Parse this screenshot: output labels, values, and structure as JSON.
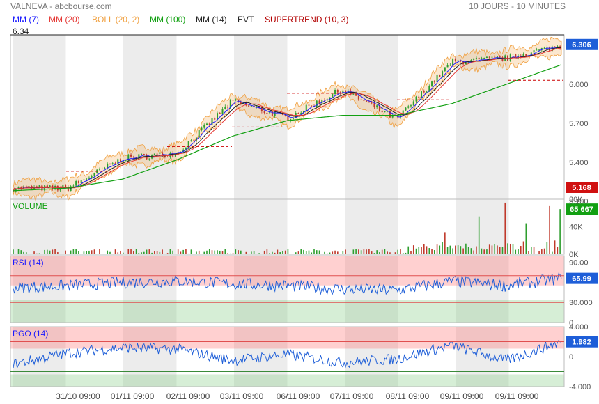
{
  "header": {
    "source": "VALNEVA - abcbourse.com",
    "period": "10 JOURS - 10 MINUTES"
  },
  "indicators": [
    {
      "label": "MM (7)",
      "color": "#1a1aff"
    },
    {
      "label": "MM (20)",
      "color": "#e53935"
    },
    {
      "label": "BOLL (20, 2)",
      "color": "#f0a040"
    },
    {
      "label": "MM (100)",
      "color": "#12a012"
    },
    {
      "label": "MM (14)",
      "color": "#222222"
    },
    {
      "label": "EVT",
      "color": "#222222"
    },
    {
      "label": "SUPERTREND (10, 3)",
      "color": "#b30000"
    }
  ],
  "price_panel": {
    "top_value": "6.34",
    "last_price": "6.306",
    "min_price": "5.168",
    "yticks": [
      "6.000",
      "5.700",
      "5.400",
      "5.100"
    ]
  },
  "volume_panel": {
    "title": "VOLUME",
    "last_volume": "65 667",
    "yticks": [
      "80K",
      "40K",
      "0K"
    ]
  },
  "rsi_panel": {
    "title": "RSI (14)",
    "last_value": "65.99",
    "yticks": [
      "90.00",
      "30.000",
      "0"
    ]
  },
  "pgo_panel": {
    "title": "PGO (14)",
    "last_value": "1.982",
    "yticks": [
      "4.000",
      "0",
      "-4.000"
    ]
  },
  "xticks": [
    "31/10 09:00",
    "01/11 09:00",
    "02/11 09:00",
    "03/11 09:00",
    "06/11 09:00",
    "07/11 09:00",
    "08/11 09:00",
    "09/11 09:00",
    "09/11 09:00"
  ],
  "chart_data": [
    {
      "type": "line",
      "title": "VALNEVA",
      "ylim": [
        5.12,
        6.38
      ],
      "x": [
        0,
        1,
        2,
        3,
        4,
        5,
        6,
        7,
        8,
        9,
        10
      ],
      "series": [
        {
          "name": "VALNEVA",
          "values": [
            5.2,
            5.2,
            5.43,
            5.47,
            5.87,
            5.74,
            5.96,
            5.73,
            6.17,
            6.2,
            6.3
          ]
        },
        {
          "name": "MM (100)",
          "values": [
            5.18,
            5.2,
            5.27,
            5.42,
            5.6,
            5.72,
            5.76,
            5.76,
            5.85,
            6.0,
            6.15
          ]
        }
      ],
      "annotations": [
        "6.34",
        "6.306",
        "5.168"
      ]
    },
    {
      "type": "bar",
      "title": "VOLUME",
      "ylim": [
        0,
        80000
      ],
      "values_description": "10-minute volume bars, mostly under 10K with spikes to ~75K on 08/11 and 09/11",
      "last_value": 65667
    },
    {
      "type": "line",
      "title": "RSI (14)",
      "ylim": [
        0,
        100
      ],
      "x": [
        0,
        1,
        2,
        3,
        4,
        5,
        6,
        7,
        8,
        9,
        10
      ],
      "series": [
        {
          "name": "RSI (14)",
          "values": [
            52,
            55,
            60,
            62,
            58,
            55,
            50,
            48,
            62,
            55,
            66
          ]
        }
      ],
      "levels": [
        70,
        30
      ],
      "last_value": 65.99
    },
    {
      "type": "line",
      "title": "PGO (14)",
      "ylim": [
        -4,
        4
      ],
      "x": [
        0,
        1,
        2,
        3,
        4,
        5,
        6,
        7,
        8,
        9,
        10
      ],
      "series": [
        {
          "name": "PGO (14)",
          "values": [
            -1,
            0.5,
            1.2,
            1.0,
            -0.5,
            0.3,
            -0.8,
            -0.3,
            1.5,
            -0.5,
            1.98
          ]
        }
      ],
      "levels": [
        2,
        -2
      ],
      "last_value": 1.982
    }
  ]
}
